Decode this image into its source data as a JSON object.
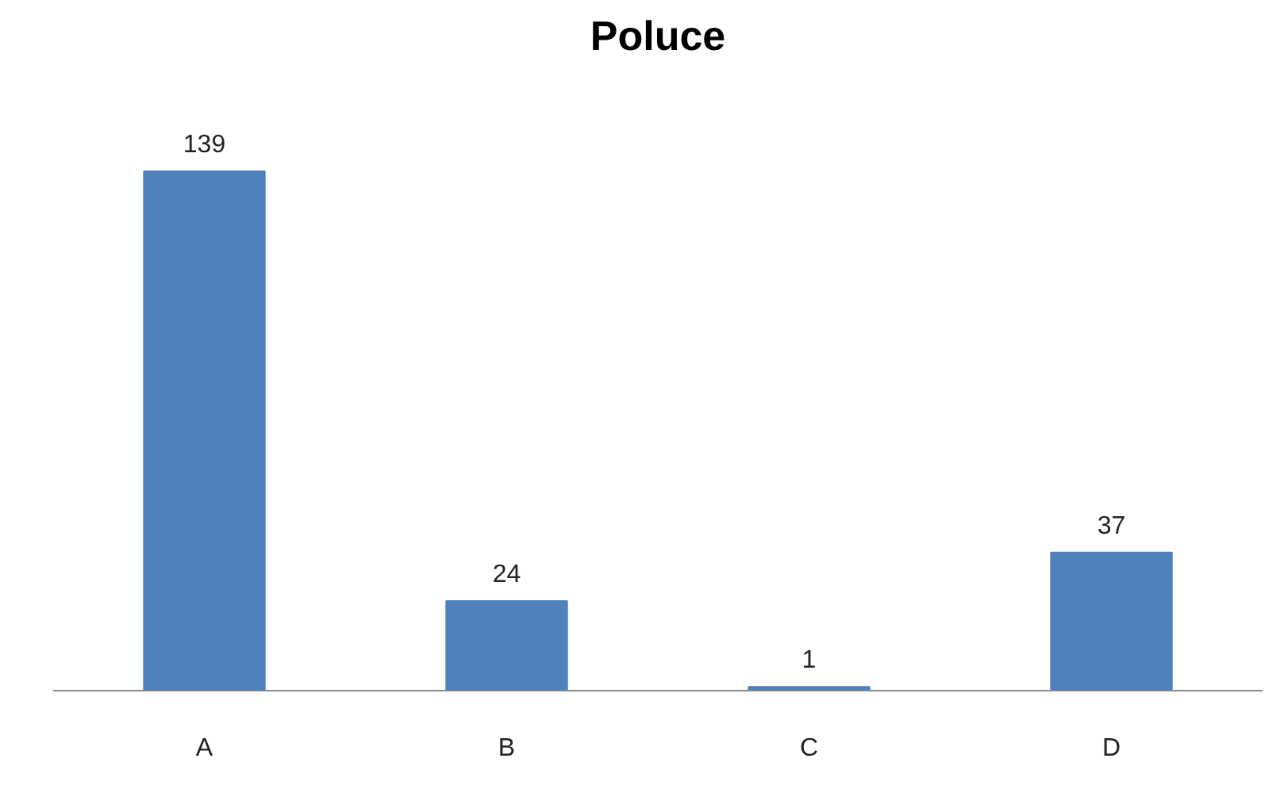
{
  "chart_data": {
    "type": "bar",
    "title": "Poluce",
    "categories": [
      "A",
      "B",
      "C",
      "D"
    ],
    "values": [
      139,
      24,
      1,
      37
    ],
    "color": "#4f81bd",
    "data_labels": true,
    "tick_labels": "x",
    "grid": false
  }
}
